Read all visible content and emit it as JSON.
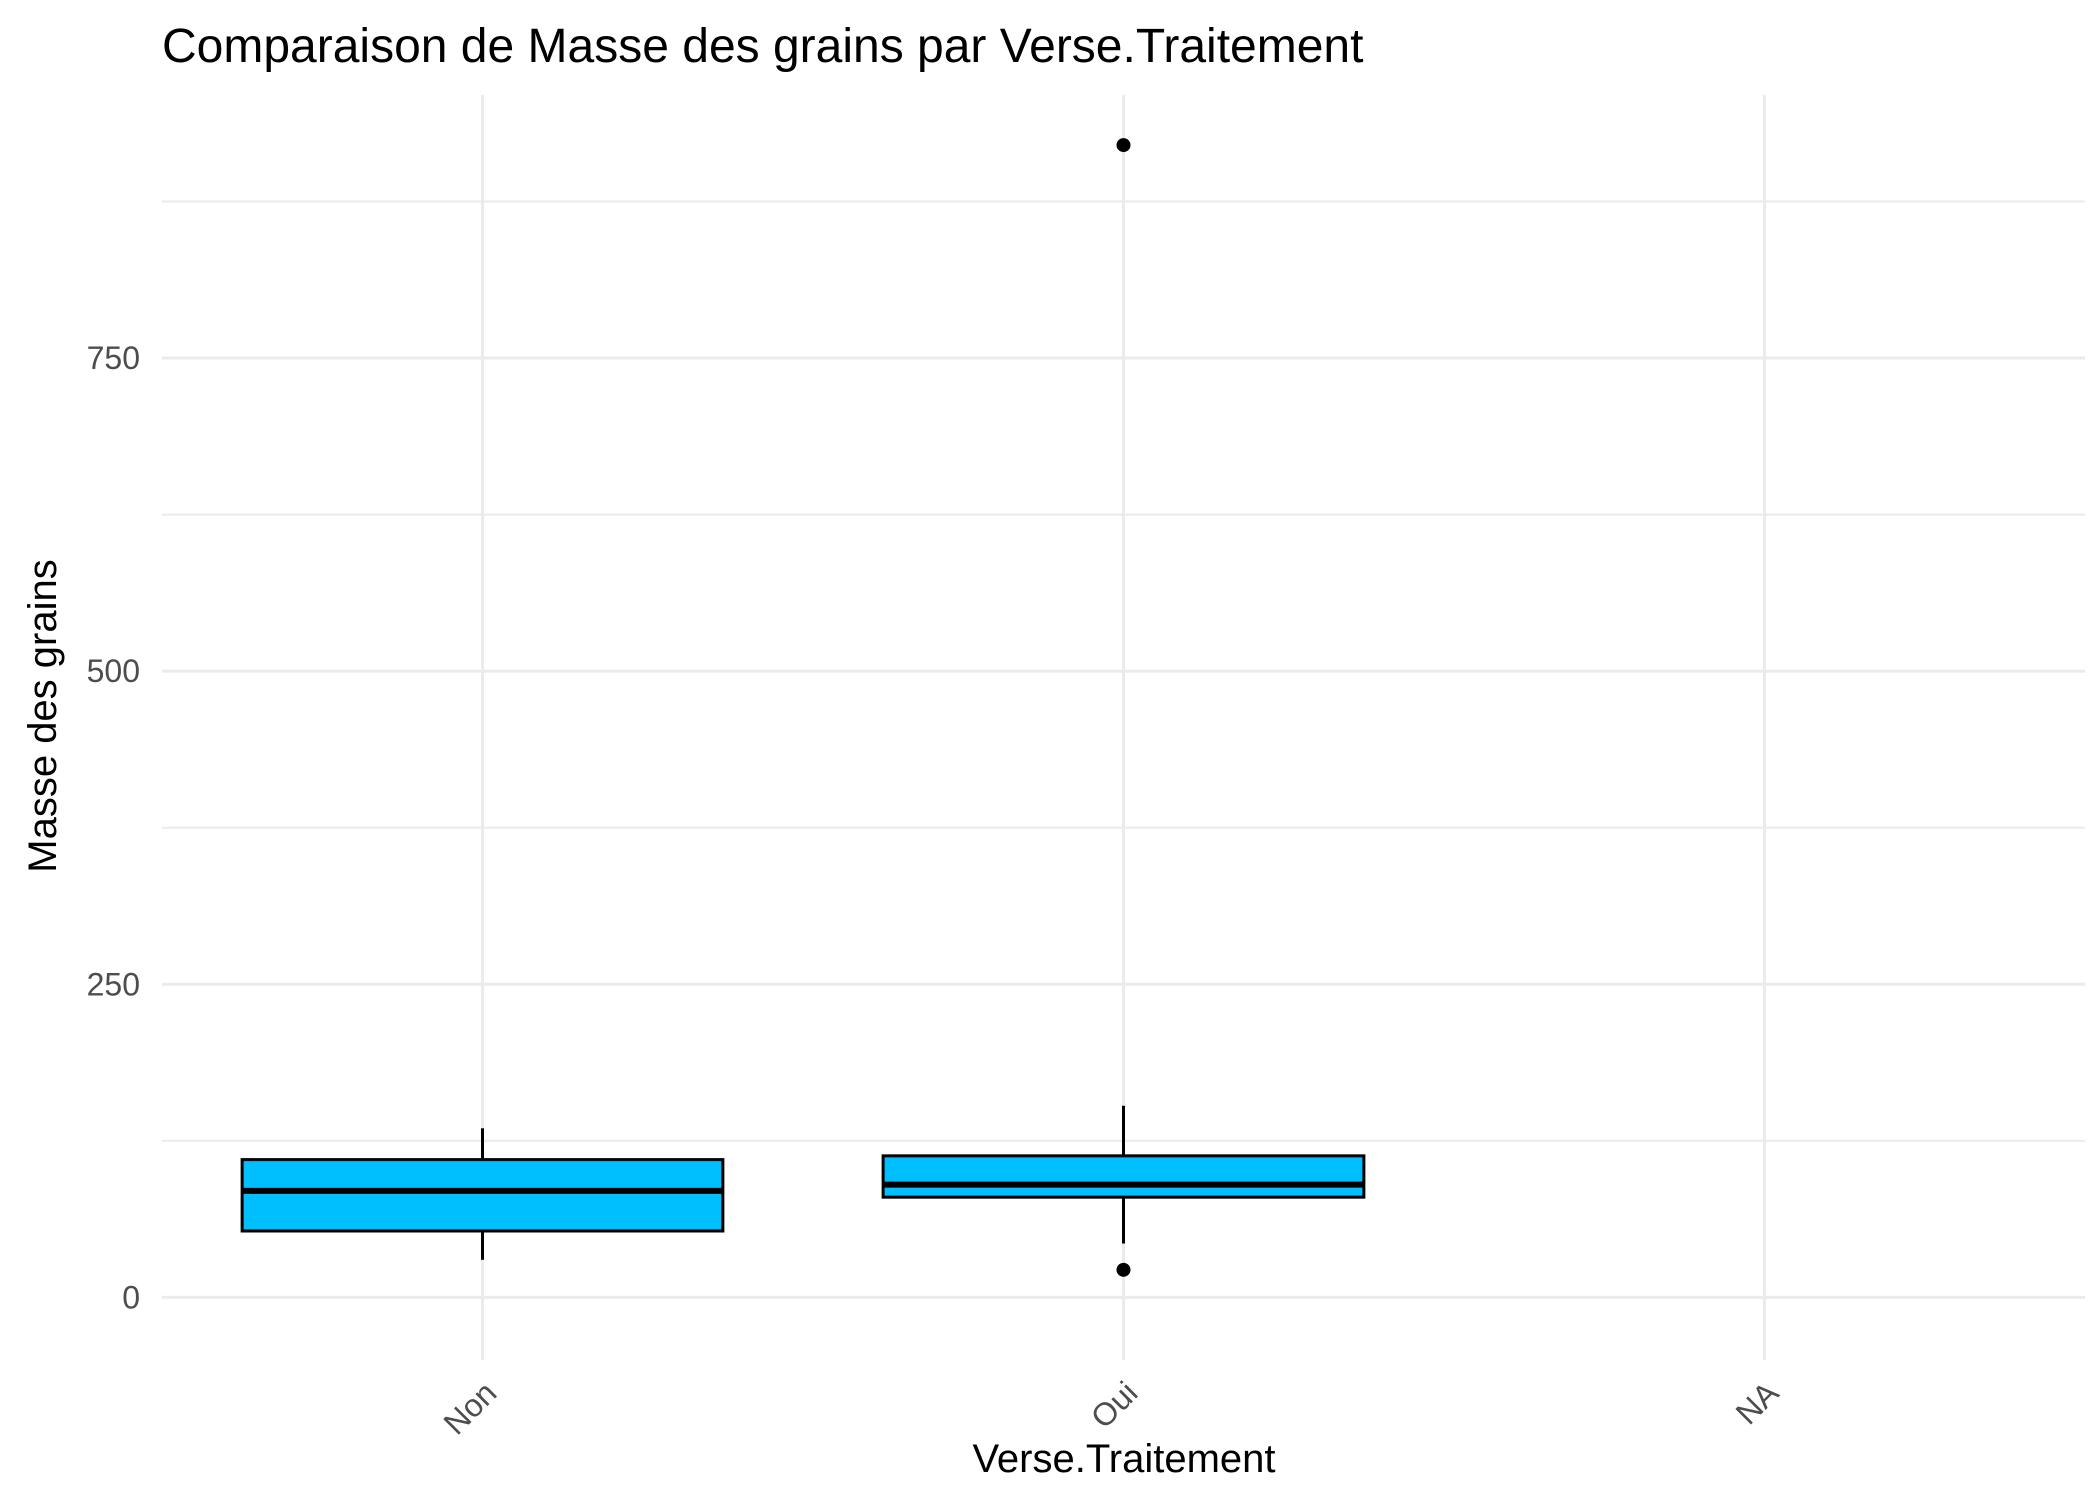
{
  "chart_data": {
    "type": "boxplot",
    "title": "Comparaison de Masse des grains par Verse.Traitement",
    "xlabel": "Verse.Traitement",
    "ylabel": "Masse des grains",
    "categories": [
      "Non",
      "Oui",
      "NA"
    ],
    "y_ticks": [
      0,
      250,
      500,
      750
    ],
    "ylim": [
      -50,
      960
    ],
    "grid": true,
    "fill_color": "#00BFFF",
    "boxes": [
      {
        "category": "Non",
        "whisker_low": 30,
        "q1": 53,
        "median": 85,
        "q3": 110,
        "whisker_high": 135,
        "outliers": []
      },
      {
        "category": "Oui",
        "whisker_low": 43,
        "q1": 80,
        "median": 90,
        "q3": 113,
        "whisker_high": 153,
        "outliers": [
          22,
          920
        ]
      }
    ]
  }
}
